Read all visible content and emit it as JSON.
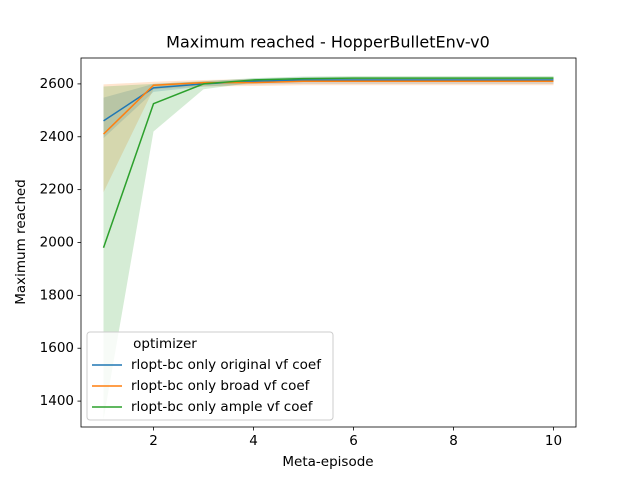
{
  "chart_data": {
    "type": "line",
    "title": "Maximum reached - HopperBulletEnv-v0",
    "x_label": "Meta-episode",
    "y_label": "Maximum reached",
    "x": [
      1,
      2,
      3,
      4,
      5,
      6,
      7,
      8,
      9,
      10
    ],
    "xlim": [
      0.55,
      10.45
    ],
    "ylim": [
      1302,
      2698
    ],
    "xticks": [
      2,
      4,
      6,
      8,
      10
    ],
    "yticks": [
      1400,
      1600,
      1800,
      2000,
      2200,
      2400,
      2600
    ],
    "legend_title": "optimizer",
    "legend_position": "lower left",
    "band_opacity": 0.2,
    "series": [
      {
        "name": "rlopt-bc only original vf coef",
        "color": "#1f77b4",
        "values": [
          2460,
          2585,
          2600,
          2610,
          2615,
          2615,
          2615,
          2615,
          2615,
          2615
        ],
        "lower": [
          2395,
          2570,
          2590,
          2598,
          2600,
          2600,
          2600,
          2600,
          2600,
          2600
        ],
        "upper": [
          2548,
          2600,
          2610,
          2620,
          2625,
          2625,
          2625,
          2625,
          2625,
          2625
        ]
      },
      {
        "name": "rlopt-bc only broad vf coef",
        "color": "#ff7f0e",
        "values": [
          2410,
          2595,
          2605,
          2605,
          2610,
          2610,
          2610,
          2610,
          2610,
          2610
        ],
        "lower": [
          2190,
          2580,
          2590,
          2592,
          2595,
          2595,
          2595,
          2595,
          2595,
          2595
        ],
        "upper": [
          2598,
          2608,
          2615,
          2618,
          2620,
          2620,
          2620,
          2620,
          2620,
          2620
        ]
      },
      {
        "name": "rlopt-bc only ample vf coef",
        "color": "#2ca02c",
        "values": [
          1980,
          2525,
          2600,
          2615,
          2620,
          2622,
          2622,
          2622,
          2622,
          2622
        ],
        "lower": [
          1330,
          2420,
          2580,
          2605,
          2612,
          2614,
          2614,
          2614,
          2614,
          2614
        ],
        "upper": [
          2590,
          2600,
          2610,
          2622,
          2628,
          2630,
          2630,
          2630,
          2630,
          2630
        ]
      }
    ]
  }
}
